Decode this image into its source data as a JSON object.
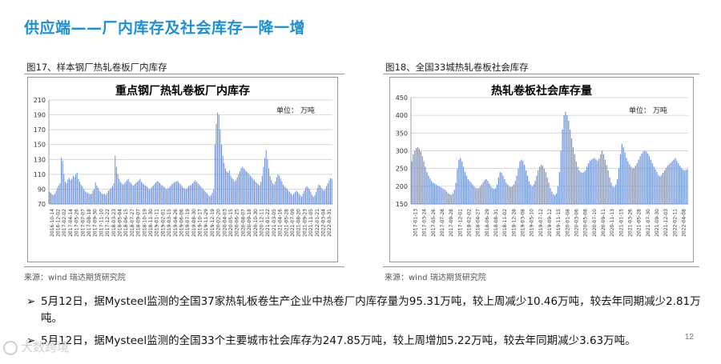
{
  "slide": {
    "title": "供应端——厂内库存及社会库存一降一增",
    "page_number": "12",
    "watermark": "大数跨境"
  },
  "figures": [
    {
      "caption": "图17、样本钢厂热轧卷板厂内库存",
      "source": "来源：wind   瑞达期货研究院"
    },
    {
      "caption": "图18、全国33城热轧卷板社会库存",
      "source": "来源：wind   瑞达期货研究院"
    }
  ],
  "bullets": [
    {
      "text_line1": "5月12日，据Mysteel监测的全国37家热轧板卷生产企业中热卷厂内库存量为95.31万吨，较上周减少10.46万吨，较去年同期减少2.81万",
      "text_line2": "吨。"
    },
    {
      "text_line1": "5月12日，据Mysteel监测的全国33个主要城市社会库存为247.85万吨，较上周增加5.22万吨，较去年同期减少3.63万吨。"
    }
  ],
  "colors": {
    "title_blue": "#1f8fcf",
    "bar_blue": "#6a8fd8",
    "grid": "#c8c8c8"
  },
  "chart_data": [
    {
      "type": "bar",
      "title": "重点钢厂热轧卷板厂内库存",
      "unit": "单位：  万吨",
      "ylim": [
        70,
        210
      ],
      "yticks": [
        70,
        90,
        110,
        130,
        150,
        170,
        190,
        210
      ],
      "grid": true,
      "x_tick_labels": [
        "2016-10-14",
        "2016-12-02",
        "2017-02-02",
        "2017-04-14",
        "2017-05-26",
        "2017-07-07",
        "2017-08-18",
        "2017-09-30",
        "2017-11-10",
        "2017-12-22",
        "2018-03-23",
        "2018-05-04",
        "2018-06-15",
        "2018-07-27",
        "2018-09-07",
        "2018-10-19",
        "2018-11-30",
        "2019-01-11",
        "2019-02-01",
        "2019-03-15",
        "2019-04-26",
        "2019-06-06",
        "2019-07-19",
        "2019-08-30",
        "2019-10-17",
        "2019-11-29",
        "2019-12-19",
        "2020-02-20",
        "2020-04-03",
        "2020-05-15",
        "2020-06-25",
        "2020-08-07",
        "2020-09-18",
        "2020-10-30",
        "2020-12-11",
        "2021-01-22",
        "2021-03-05",
        "2021-04-16",
        "2021-05-28",
        "2021-07-09",
        "2021-08-20",
        "2021-09-23",
        "2021-11-05",
        "2022-01-21",
        "2022-03-04",
        "2022-03-31"
      ],
      "series": [
        {
          "values": [
            86,
            85,
            83,
            82,
            84,
            88,
            92,
            95,
            98,
            132,
            128,
            110,
            100,
            98,
            103,
            105,
            102,
            104,
            108,
            106,
            110,
            112,
            104,
            100,
            96,
            94,
            90,
            88,
            86,
            85,
            84,
            83,
            84,
            88,
            90,
            99,
            95,
            92,
            88,
            86,
            84,
            83,
            84,
            82,
            85,
            88,
            90,
            92,
            94,
            98,
            135,
            120,
            110,
            104,
            100,
            98,
            96,
            98,
            100,
            102,
            104,
            100,
            98,
            96,
            95,
            97,
            99,
            100,
            102,
            104,
            100,
            98,
            96,
            95,
            94,
            92,
            90,
            91,
            93,
            95,
            97,
            99,
            101,
            100,
            98,
            96,
            95,
            93,
            92,
            90,
            91,
            92,
            94,
            96,
            98,
            99,
            100,
            101,
            100,
            98,
            96,
            94,
            92,
            91,
            90,
            92,
            94,
            95,
            96,
            98,
            100,
            102,
            100,
            98,
            96,
            94,
            92,
            90,
            88,
            86,
            84,
            82,
            80,
            82,
            85,
            90,
            150,
            178,
            193,
            190,
            170,
            150,
            135,
            125,
            118,
            114,
            112,
            115,
            108,
            105,
            103,
            100,
            102,
            106,
            110,
            114,
            118,
            120,
            118,
            116,
            114,
            112,
            110,
            108,
            106,
            104,
            102,
            100,
            98,
            96,
            95,
            100,
            108,
            120,
            132,
            143,
            130,
            118,
            108,
            102,
            98,
            96,
            100,
            106,
            110,
            108,
            104,
            100,
            96,
            94,
            92,
            90,
            88,
            86,
            84,
            82,
            84,
            86,
            88,
            86,
            84,
            82,
            80,
            84,
            88,
            92,
            94,
            92,
            90,
            86,
            82,
            80,
            82,
            86,
            92,
            96,
            95,
            92,
            90,
            88,
            90,
            94,
            98,
            102,
            105,
            104
          ]
        }
      ]
    },
    {
      "type": "bar",
      "title": "热轧卷板社会库存量",
      "unit": "单位：  万吨",
      "ylim": [
        150,
        450
      ],
      "yticks": [
        150,
        200,
        250,
        300,
        350,
        400,
        450
      ],
      "grid": true,
      "x_tick_labels": [
        "2017-01-13",
        "2017-03-24",
        "2017-05-26",
        "2017-07-28",
        "2017-09-28",
        "2017-12-01",
        "2018-02-02",
        "2018-04-27",
        "2018-06-29",
        "2018-08-31",
        "2018-11-02",
        "2018-12-28",
        "2019-03-08",
        "2019-05-10",
        "2019-07-12",
        "2019-09-12",
        "2019-11-15",
        "2020-01-08",
        "2020-03-06",
        "2020-05-08",
        "2020-07-10",
        "2020-09-11",
        "2020-11-13",
        "2021-01-15",
        "2021-03-26",
        "2021-05-28",
        "2021-07-30",
        "2021-09-30",
        "2021-12-03",
        "2022-02-11",
        "2022-04-08"
      ],
      "series": [
        {
          "values": [
            270,
            290,
            300,
            308,
            310,
            305,
            298,
            285,
            270,
            255,
            240,
            230,
            222,
            215,
            210,
            208,
            205,
            202,
            200,
            198,
            195,
            192,
            190,
            185,
            180,
            178,
            176,
            180,
            190,
            210,
            250,
            275,
            280,
            270,
            255,
            240,
            230,
            220,
            215,
            210,
            205,
            200,
            196,
            194,
            195,
            200,
            205,
            212,
            218,
            220,
            215,
            208,
            200,
            195,
            192,
            195,
            205,
            225,
            240,
            238,
            230,
            220,
            210,
            205,
            200,
            198,
            200,
            205,
            215,
            230,
            250,
            270,
            275,
            272,
            260,
            245,
            230,
            215,
            205,
            200,
            205,
            215,
            230,
            245,
            255,
            260,
            258,
            250,
            240,
            225,
            210,
            195,
            185,
            178,
            175,
            180,
            200,
            240,
            300,
            360,
            400,
            410,
            400,
            385,
            360,
            335,
            310,
            290,
            270,
            255,
            245,
            240,
            238,
            240,
            245,
            255,
            265,
            272,
            275,
            278,
            280,
            276,
            272,
            278,
            290,
            300,
            290,
            275,
            260,
            245,
            225,
            210,
            200,
            198,
            205,
            220,
            250,
            290,
            320,
            310,
            295,
            280,
            270,
            262,
            255,
            250,
            252,
            258,
            265,
            275,
            285,
            292,
            298,
            300,
            298,
            292,
            285,
            275,
            265,
            255,
            248,
            240,
            232,
            228,
            232,
            238,
            245,
            252,
            258,
            262,
            266,
            270,
            275,
            280,
            272,
            265,
            258,
            252,
            248,
            245,
            246,
            248
          ]
        }
      ]
    }
  ]
}
